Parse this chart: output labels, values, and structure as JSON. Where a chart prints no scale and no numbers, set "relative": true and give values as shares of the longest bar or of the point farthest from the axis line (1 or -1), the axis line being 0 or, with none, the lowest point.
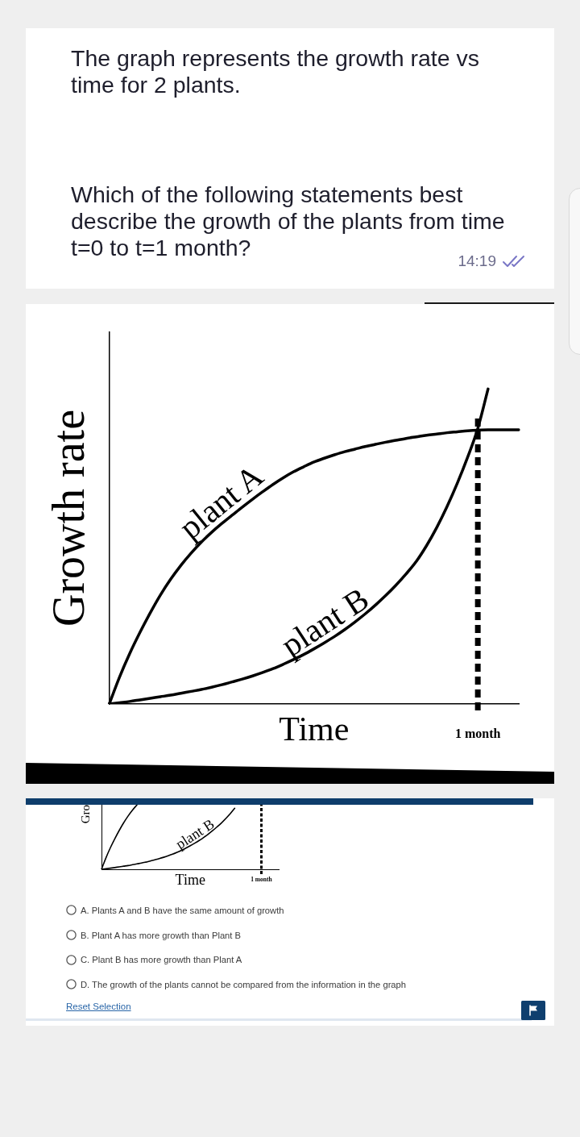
{
  "chart_data": [
    {
      "type": "other",
      "annotations": [
        "The graph represents the growth rate vs time for 2 plants.",
        "Which of the following statements best describe the growth of the plants from time t=0 to t=1 month?",
        "14:19"
      ]
    },
    {
      "type": "line",
      "xlabel": "Time",
      "ylabel": "Growth rate",
      "relative": true,
      "annotations": [
        "1 month"
      ],
      "categories": [
        null,
        null,
        null,
        null,
        null,
        null,
        null,
        null,
        null,
        null,
        null,
        null,
        null,
        null,
        null,
        null,
        null,
        null,
        null,
        null,
        null,
        null,
        null,
        null,
        null,
        null,
        null,
        null,
        null,
        null,
        null,
        null,
        null,
        null,
        null,
        null,
        null,
        null,
        null,
        null,
        null
      ],
      "series": [
        {
          "name": "plant A",
          "color": "#000000",
          "values": [
            0,
            0.085,
            0.16,
            0.227,
            0.289,
            0.346,
            0.396,
            0.44,
            0.479,
            0.514,
            0.545,
            0.573,
            0.599,
            0.625,
            0.65,
            0.674,
            0.697,
            0.718,
            0.737,
            0.753,
            0.768,
            0.78,
            0.791,
            0.801,
            0.809,
            0.817,
            0.824,
            0.831,
            0.837,
            0.843,
            0.848,
            0.853,
            0.857,
            0.861,
            0.864,
            0.867,
            0.869,
            0.87,
            0.87,
            0.87,
            0.87
          ]
        },
        {
          "name": "plant B",
          "color": "#000000",
          "values": [
            0,
            0.004,
            0.008,
            0.013,
            0.018,
            0.023,
            0.028,
            0.034,
            0.04,
            0.046,
            0.053,
            0.061,
            0.07,
            0.079,
            0.089,
            0.1,
            0.112,
            0.126,
            0.141,
            0.157,
            0.175,
            0.194,
            0.214,
            0.236,
            0.26,
            0.286,
            0.314,
            0.344,
            0.377,
            0.413,
            0.453,
            0.503,
            0.561,
            0.627,
            0.701,
            0.783,
            0.875,
            1,
            null,
            null,
            null
          ]
        }
      ]
    },
    {
      "type": "line",
      "xlabel": "Time",
      "ylabel": "Gro",
      "relative": true,
      "annotations": [
        "1 month"
      ],
      "categories": [
        null,
        null,
        null,
        null,
        null,
        null,
        null,
        null,
        null,
        null,
        null,
        null,
        null,
        null,
        null,
        null,
        null,
        null,
        null,
        null,
        null,
        null,
        null,
        null,
        null,
        null,
        null,
        null,
        null,
        null,
        null,
        null,
        null,
        null,
        null,
        null,
        null,
        null,
        null,
        null,
        null
      ],
      "series": [
        {
          "color": "#000000",
          "values": [
            0,
            0.177,
            0.334,
            0.474,
            0.603,
            0.722,
            0.827,
            0.919,
            1,
            null,
            null,
            null,
            null,
            null,
            null,
            null,
            null,
            null,
            null,
            null,
            null,
            null,
            null,
            null,
            null,
            null,
            null,
            null,
            null,
            null,
            null,
            null,
            null,
            null,
            null,
            null,
            null,
            null,
            null,
            null,
            null
          ]
        },
        {
          "name": "plant B",
          "color": "#000000",
          "values": [
            0,
            0.008,
            0.017,
            0.027,
            0.038,
            0.048,
            0.058,
            0.071,
            0.084,
            0.096,
            0.111,
            0.127,
            0.146,
            0.165,
            0.186,
            0.209,
            0.234,
            0.263,
            0.294,
            0.328,
            0.365,
            0.405,
            0.447,
            0.493,
            0.543,
            0.597,
            0.656,
            0.718,
            0.787,
            0.862,
            0.946,
            null,
            null,
            null,
            null,
            null,
            null,
            null,
            null,
            null,
            null
          ]
        }
      ]
    },
    {
      "type": "other",
      "annotations": [
        "A. Plants A and B have the same amount of growth",
        "B. Plant A has more growth than Plant B",
        "C. Plant B has more growth than Plant A",
        "D. The growth of the plants cannot be compared from the information in the graph",
        "Reset Selection"
      ]
    }
  ]
}
